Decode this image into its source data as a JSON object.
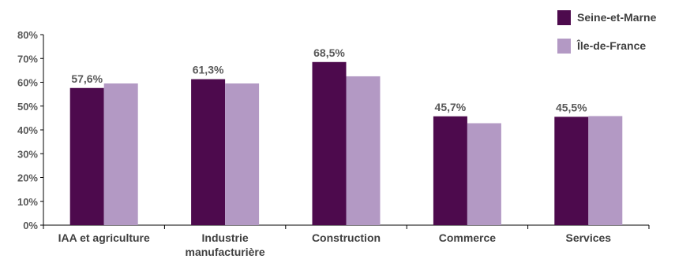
{
  "chart_data": {
    "type": "bar",
    "categories": [
      "IAA et agriculture",
      "Industrie manufacturière",
      "Construction",
      "Commerce",
      "Services"
    ],
    "category_lines": [
      [
        "IAA et agriculture"
      ],
      [
        "Industrie",
        "manufacturière"
      ],
      [
        "Construction"
      ],
      [
        "Commerce"
      ],
      [
        "Services"
      ]
    ],
    "series": [
      {
        "name": "Seine-et-Marne",
        "values": [
          57.6,
          61.3,
          68.5,
          45.7,
          45.5
        ],
        "labels": [
          "57,6%",
          "61,3%",
          "68,5%",
          "45,7%",
          "45,5%"
        ],
        "color": "#4d0a4d"
      },
      {
        "name": "Île-de-France",
        "values": [
          59.5,
          59.5,
          62.5,
          42.8,
          45.8
        ],
        "color": "#b399c4"
      }
    ],
    "ylim": [
      0,
      80
    ],
    "yticks": [
      "0%",
      "10%",
      "20%",
      "30%",
      "40%",
      "50%",
      "60%",
      "70%",
      "80%"
    ],
    "grid": false,
    "legend": "top-right",
    "title": "",
    "xlabel": "",
    "ylabel": ""
  }
}
